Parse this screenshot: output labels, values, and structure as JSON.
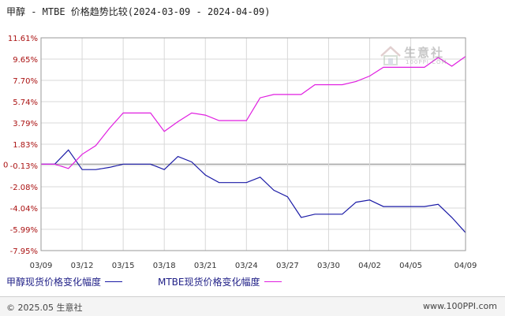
{
  "title": "甲醇 - MTBE 价格趋势比较(2024-03-09 - 2024-04-09)",
  "watermark": {
    "name": "生意社",
    "sub": "100PPI.COM",
    "icon": "house-logo-icon"
  },
  "footer": {
    "copyright": "© 2025.05 生意社",
    "url": "www.100PPI.com"
  },
  "colors": {
    "series1": "#1a1aa6",
    "series2": "#e01ee0",
    "grid": "#d8d8d8",
    "zero": "#888888"
  },
  "chart_data": {
    "type": "line",
    "title": "甲醇 - MTBE 价格趋势比较(2024-03-09 - 2024-04-09)",
    "xlabel": "",
    "ylabel": "",
    "ylim": [
      -7.95,
      11.61
    ],
    "grid": true,
    "legend_position": "bottom",
    "x_ticks": [
      "03/09",
      "03/12",
      "03/15",
      "03/18",
      "03/21",
      "03/24",
      "03/27",
      "03/30",
      "04/02",
      "04/05",
      "04/09"
    ],
    "x_tick_positions": [
      0,
      3,
      6,
      9,
      12,
      15,
      18,
      21,
      24,
      27,
      31
    ],
    "y_ticks": [
      "11.61%",
      "9.65%",
      "7.70%",
      "5.74%",
      "3.79%",
      "1.83%",
      "-0.13%",
      "-2.08%",
      "-4.04%",
      "-5.99%",
      "-7.95%"
    ],
    "y_tick_values": [
      11.61,
      9.65,
      7.7,
      5.74,
      3.79,
      1.83,
      -0.13,
      -2.08,
      -4.04,
      -5.99,
      -7.95
    ],
    "zero_label": "0",
    "x": [
      0,
      1,
      2,
      3,
      4,
      5,
      6,
      7,
      8,
      9,
      10,
      11,
      12,
      13,
      14,
      15,
      16,
      17,
      18,
      19,
      20,
      21,
      22,
      23,
      24,
      25,
      26,
      27,
      28,
      29,
      30,
      31
    ],
    "series": [
      {
        "name": "甲醇现货价格变化幅度",
        "values": [
          0,
          0,
          1.3,
          -0.5,
          -0.5,
          -0.3,
          0,
          0,
          0,
          -0.5,
          0.7,
          0.2,
          -1.0,
          -1.7,
          -1.7,
          -1.7,
          -1.2,
          -2.4,
          -3.0,
          -4.9,
          -4.6,
          -4.6,
          -4.6,
          -3.5,
          -3.3,
          -3.9,
          -3.9,
          -3.9,
          -3.9,
          -3.7,
          -4.9,
          -6.3
        ]
      },
      {
        "name": "MTBE现货价格变化幅度",
        "values": [
          0,
          0,
          -0.4,
          0.9,
          1.7,
          3.3,
          4.7,
          4.7,
          4.7,
          3.0,
          3.9,
          4.7,
          4.5,
          4.0,
          4.0,
          4.0,
          6.1,
          6.4,
          6.4,
          6.4,
          7.3,
          7.3,
          7.3,
          7.6,
          8.1,
          8.9,
          8.9,
          8.9,
          8.9,
          9.8,
          9.0,
          9.9
        ]
      }
    ]
  }
}
